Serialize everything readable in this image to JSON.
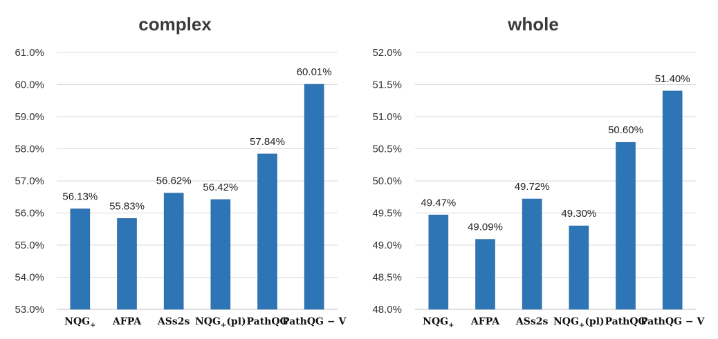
{
  "chart_data": [
    {
      "type": "bar",
      "title": "complex",
      "categories": [
        "NQG+",
        "AFPA",
        "ASs2s",
        "NQG+(pl)",
        "PathQG",
        "PathQG − V"
      ],
      "values": [
        56.13,
        55.83,
        56.62,
        56.42,
        57.84,
        60.01
      ],
      "data_labels": [
        "56.13%",
        "55.83%",
        "56.62%",
        "56.42%",
        "57.84%",
        "60.01%"
      ],
      "ylim": [
        53.0,
        61.0
      ],
      "yticks": [
        "53.0%",
        "54.0%",
        "55.0%",
        "56.0%",
        "57.0%",
        "58.0%",
        "59.0%",
        "60.0%",
        "61.0%"
      ],
      "grid": true,
      "bar_color": "#2e75b6"
    },
    {
      "type": "bar",
      "title": "whole",
      "categories": [
        "NQG+",
        "AFPA",
        "ASs2s",
        "NQG+(pl)",
        "PathQG",
        "PathQG − V"
      ],
      "values": [
        49.47,
        49.09,
        49.72,
        49.3,
        50.6,
        51.4
      ],
      "data_labels": [
        "49.47%",
        "49.09%",
        "49.72%",
        "49.30%",
        "50.60%",
        "51.40%"
      ],
      "ylim": [
        48.0,
        52.0
      ],
      "yticks": [
        "48.0%",
        "48.5%",
        "49.0%",
        "49.5%",
        "50.0%",
        "50.5%",
        "51.0%",
        "51.5%",
        "52.0%"
      ],
      "grid": true,
      "bar_color": "#2e75b6"
    }
  ]
}
